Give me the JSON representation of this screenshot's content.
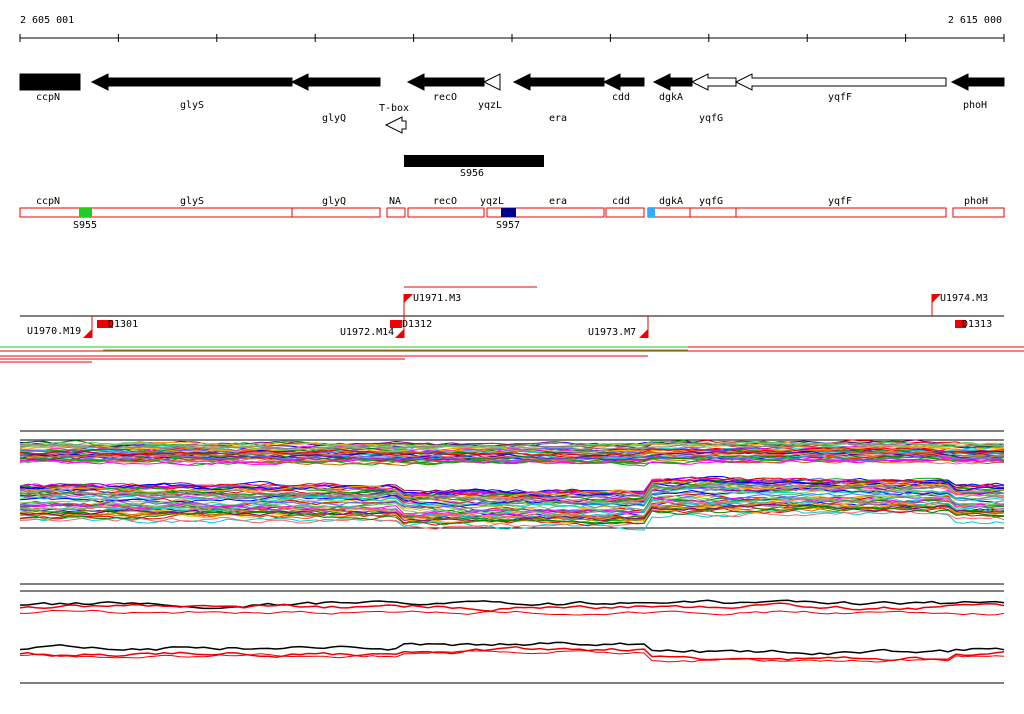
{
  "ruler": {
    "start": "2 605 001",
    "end": "2 615 000"
  },
  "genes": [
    "ccpN",
    "glyS",
    "glyQ",
    "T-box",
    "recO",
    "yqzL",
    "era",
    "cdd",
    "dgkA",
    "yqfG",
    "yqfF",
    "phoH"
  ],
  "segment": "S956",
  "regions": [
    "ccpN",
    "glyS",
    "glyQ",
    "NA",
    "recO",
    "yqzL",
    "era",
    "cdd",
    "dgkA",
    "yqfG",
    "yqfF",
    "phoH"
  ],
  "markers": [
    "S955",
    "S957"
  ],
  "units": [
    "U1971.M3",
    "U1974.M3",
    "U1970.M19",
    "U1972.M14",
    "U1973.M7"
  ],
  "features": [
    "D1301",
    "D1312",
    "D1313"
  ]
}
